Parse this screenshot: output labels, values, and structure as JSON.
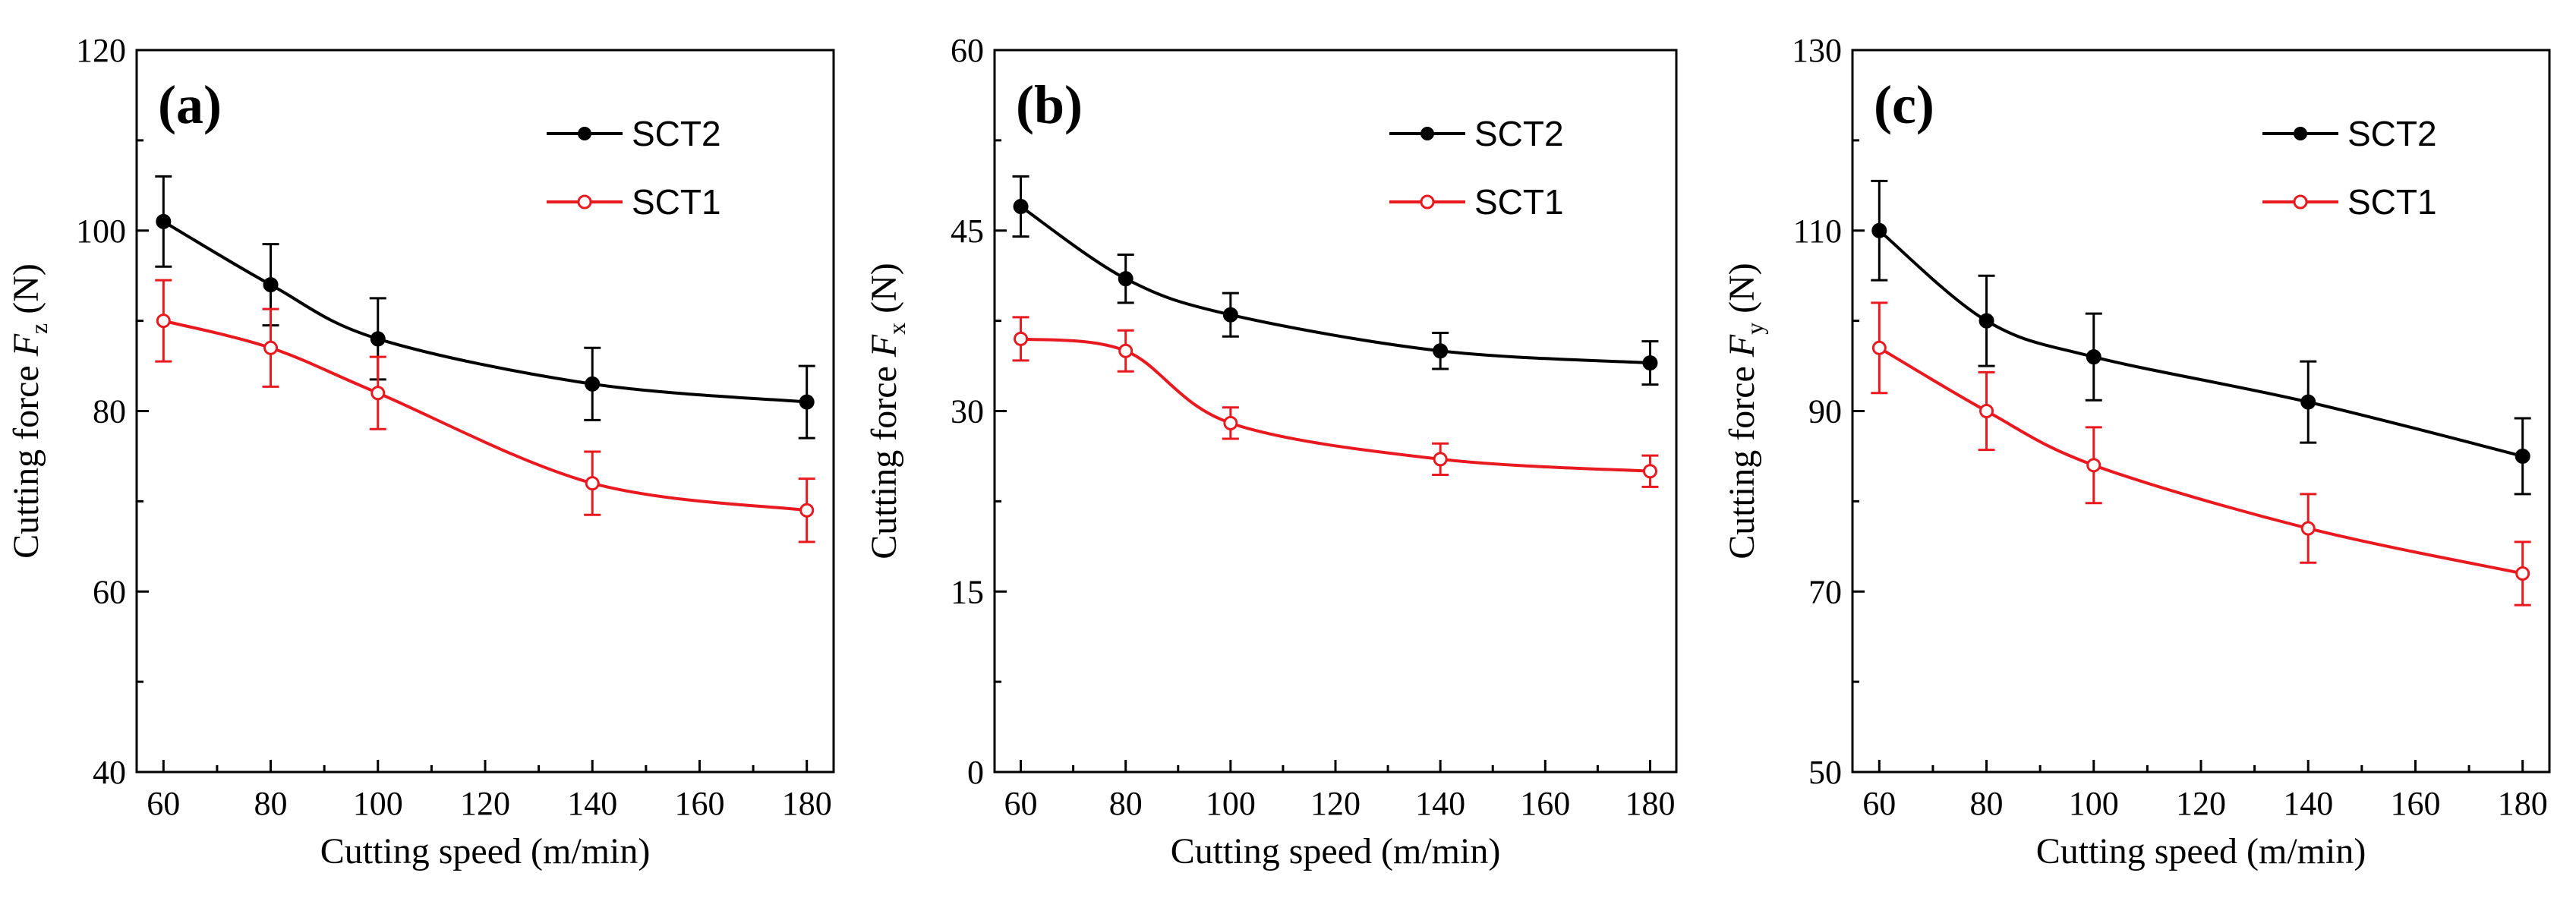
{
  "chart_data": [
    {
      "type": "line",
      "panel_label": "(a)",
      "xlabel": "Cutting speed (m/min)",
      "ylabel_prefix": "Cutting force ",
      "ylabel_symbol": "F",
      "ylabel_subscript": "z",
      "ylabel_suffix": " (N)",
      "x": [
        60,
        80,
        100,
        140,
        180
      ],
      "xlim": [
        55,
        185
      ],
      "xticks": [
        60,
        80,
        100,
        120,
        140,
        160,
        180
      ],
      "ylim": [
        40,
        120
      ],
      "yticks": [
        40,
        60,
        80,
        100,
        120
      ],
      "series": [
        {
          "name": "SCT2",
          "color": "#000000",
          "marker": "filled",
          "values": [
            101,
            94,
            88,
            83,
            81
          ],
          "errors": [
            5,
            4.5,
            4.5,
            4,
            4
          ]
        },
        {
          "name": "SCT1",
          "color": "#e8191f",
          "marker": "open",
          "values": [
            90,
            87,
            82,
            72,
            69
          ],
          "errors": [
            4.5,
            4.3,
            4,
            3.5,
            3.5
          ]
        }
      ]
    },
    {
      "type": "line",
      "panel_label": "(b)",
      "xlabel": "Cutting speed (m/min)",
      "ylabel_prefix": "Cutting force ",
      "ylabel_symbol": "F",
      "ylabel_subscript": "x",
      "ylabel_suffix": " (N)",
      "x": [
        60,
        80,
        100,
        140,
        180
      ],
      "xlim": [
        55,
        185
      ],
      "xticks": [
        60,
        80,
        100,
        120,
        140,
        160,
        180
      ],
      "ylim": [
        0,
        60
      ],
      "yticks": [
        0,
        15,
        30,
        45,
        60
      ],
      "series": [
        {
          "name": "SCT2",
          "color": "#000000",
          "marker": "filled",
          "values": [
            47,
            41,
            38,
            35,
            34
          ],
          "errors": [
            2.5,
            2,
            1.8,
            1.5,
            1.8
          ]
        },
        {
          "name": "SCT1",
          "color": "#e8191f",
          "marker": "open",
          "values": [
            36,
            35,
            29,
            26,
            25
          ],
          "errors": [
            1.8,
            1.7,
            1.3,
            1.3,
            1.3
          ]
        }
      ]
    },
    {
      "type": "line",
      "panel_label": "(c)",
      "xlabel": "Cutting speed (m/min)",
      "ylabel_prefix": "Cutting force ",
      "ylabel_symbol": "F",
      "ylabel_subscript": "y",
      "ylabel_suffix": " (N)",
      "x": [
        60,
        80,
        100,
        140,
        180
      ],
      "xlim": [
        55,
        185
      ],
      "xticks": [
        60,
        80,
        100,
        120,
        140,
        160,
        180
      ],
      "ylim": [
        50,
        130
      ],
      "yticks": [
        50,
        70,
        90,
        110,
        130
      ],
      "series": [
        {
          "name": "SCT2",
          "color": "#000000",
          "marker": "filled",
          "values": [
            110,
            100,
            96,
            91,
            85
          ],
          "errors": [
            5.5,
            5,
            4.8,
            4.5,
            4.2
          ]
        },
        {
          "name": "SCT1",
          "color": "#e8191f",
          "marker": "open",
          "values": [
            97,
            90,
            84,
            77,
            72
          ],
          "errors": [
            5,
            4.3,
            4.2,
            3.8,
            3.5
          ]
        }
      ]
    }
  ]
}
